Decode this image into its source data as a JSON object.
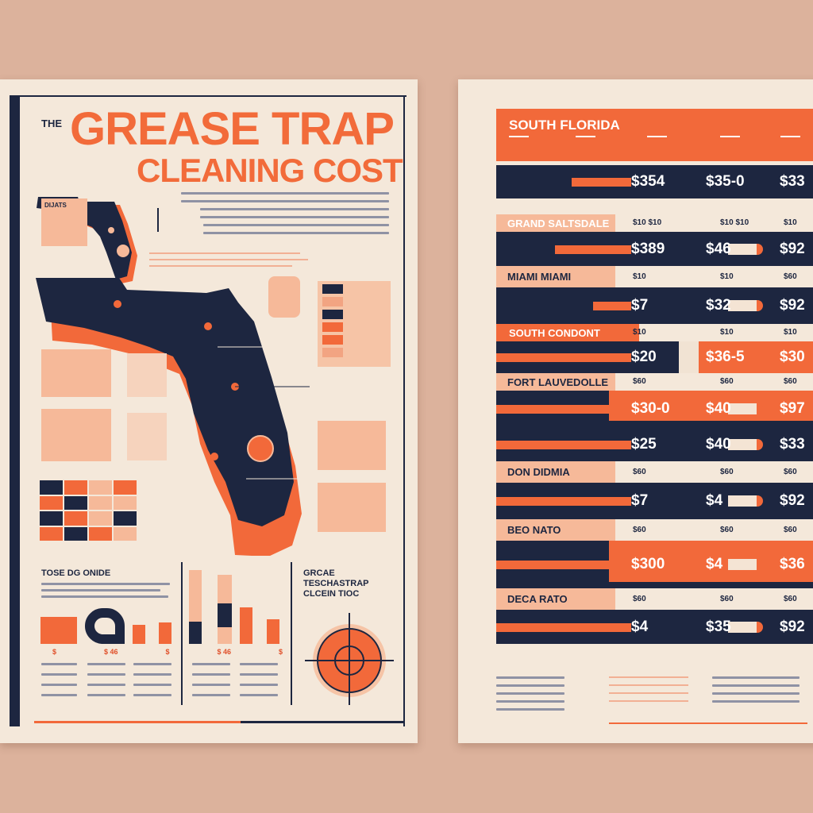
{
  "left_poster": {
    "pre_title": "THE",
    "title_line1": "GREASE TRAP",
    "title_line2": "CLEANING COST",
    "side_box_heading": "DIJATS",
    "bottom_heading": "TOSE DG ONIDE",
    "target_heading": [
      "GRCAE",
      "TESCHASTRAP",
      "CLCEIN TIOC"
    ],
    "bottom_labels": [
      "$",
      "$ 46",
      "$",
      "$ 46",
      "$"
    ],
    "colors": {
      "navy": "#1d2640",
      "orange": "#f2693a",
      "peach": "#f6b999",
      "cream": "#f4e8da"
    }
  },
  "right_poster": {
    "header_title": "SOUTH FLORIDA",
    "rows": [
      {
        "label": "",
        "cols": [
          "",
          "",
          ""
        ],
        "values": [
          "$354",
          "$35-0",
          "$33"
        ],
        "style": "navy"
      },
      {
        "label": "GRAND SALTSDALE",
        "cols": [
          "$10 $10",
          "$10 $10",
          "$10"
        ],
        "values": [
          "$389",
          "$46",
          "$92"
        ],
        "style": "navy"
      },
      {
        "label": "MIAMI MIAMI",
        "cols": [
          "$10",
          "$10",
          "$60"
        ],
        "values": [
          "$7",
          "$32",
          "$92"
        ],
        "style": "navy"
      },
      {
        "label": "SOUTH CONDONT",
        "cols": [
          "$10",
          "$10",
          "$10"
        ],
        "values": [
          "$20",
          "$36-5",
          "$30"
        ],
        "style": "split"
      },
      {
        "label": "FORT LAUVEDOLLE",
        "cols": [
          "$60",
          "$60",
          "$60"
        ],
        "values": [
          "$30-0",
          "$40",
          "$97"
        ],
        "style": "orange"
      },
      {
        "label": "",
        "cols": [
          "",
          "",
          ""
        ],
        "values": [
          "$25",
          "$40",
          "$33"
        ],
        "style": "navy"
      },
      {
        "label": "DON DIDMIA",
        "cols": [
          "$60",
          "$60",
          "$60"
        ],
        "values": [
          "$7",
          "$4",
          "$92"
        ],
        "style": "navy"
      },
      {
        "label": "BEO NATO",
        "cols": [
          "$60",
          "$60",
          "$60"
        ],
        "values": [
          "$300",
          "$4",
          "$36"
        ],
        "style": "orange"
      },
      {
        "label": "DECA RATO",
        "cols": [
          "$60",
          "$60",
          "$60"
        ],
        "values": [
          "$4",
          "$35",
          "$92"
        ],
        "style": "navy"
      }
    ]
  }
}
